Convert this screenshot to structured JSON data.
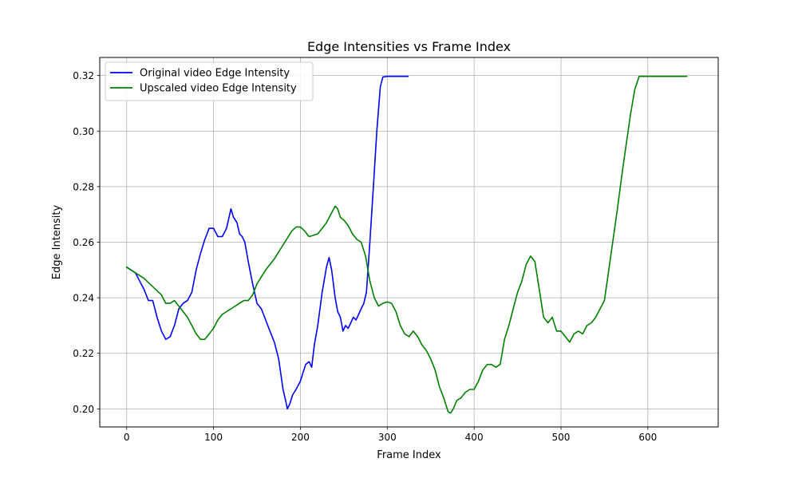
{
  "chart_data": {
    "type": "line",
    "title": "Edge Intensities vs Frame Index",
    "xlabel": "Frame Index",
    "ylabel": "Edge Intensity",
    "xlim": [
      -31,
      681
    ],
    "ylim": [
      0.1935,
      0.3265
    ],
    "xticks": [
      0,
      100,
      200,
      300,
      400,
      500,
      600
    ],
    "yticks": [
      0.2,
      0.22,
      0.24,
      0.26,
      0.28,
      0.3,
      0.32
    ],
    "grid": true,
    "legend_position": "top-left",
    "series": [
      {
        "name": "Original video Edge Intensity",
        "color": "#0000ff",
        "points": [
          [
            0,
            0.251
          ],
          [
            5,
            0.25
          ],
          [
            10,
            0.249
          ],
          [
            15,
            0.246
          ],
          [
            20,
            0.243
          ],
          [
            25,
            0.239
          ],
          [
            30,
            0.239
          ],
          [
            35,
            0.233
          ],
          [
            40,
            0.228
          ],
          [
            45,
            0.225
          ],
          [
            50,
            0.226
          ],
          [
            55,
            0.23
          ],
          [
            60,
            0.236
          ],
          [
            65,
            0.238
          ],
          [
            70,
            0.239
          ],
          [
            75,
            0.242
          ],
          [
            80,
            0.25
          ],
          [
            85,
            0.256
          ],
          [
            90,
            0.261
          ],
          [
            95,
            0.265
          ],
          [
            100,
            0.265
          ],
          [
            105,
            0.262
          ],
          [
            110,
            0.262
          ],
          [
            115,
            0.265
          ],
          [
            120,
            0.272
          ],
          [
            123,
            0.269
          ],
          [
            127,
            0.267
          ],
          [
            130,
            0.263
          ],
          [
            133,
            0.262
          ],
          [
            136,
            0.26
          ],
          [
            140,
            0.253
          ],
          [
            145,
            0.245
          ],
          [
            150,
            0.238
          ],
          [
            155,
            0.236
          ],
          [
            160,
            0.232
          ],
          [
            165,
            0.228
          ],
          [
            170,
            0.224
          ],
          [
            175,
            0.218
          ],
          [
            180,
            0.207
          ],
          [
            183,
            0.203
          ],
          [
            185,
            0.2
          ],
          [
            188,
            0.202
          ],
          [
            191,
            0.205
          ],
          [
            195,
            0.207
          ],
          [
            200,
            0.21
          ],
          [
            203,
            0.213
          ],
          [
            206,
            0.216
          ],
          [
            210,
            0.217
          ],
          [
            213,
            0.215
          ],
          [
            216,
            0.223
          ],
          [
            220,
            0.23
          ],
          [
            225,
            0.242
          ],
          [
            230,
            0.251
          ],
          [
            233,
            0.2545
          ],
          [
            236,
            0.25
          ],
          [
            240,
            0.24
          ],
          [
            243,
            0.235
          ],
          [
            246,
            0.233
          ],
          [
            249,
            0.228
          ],
          [
            252,
            0.23
          ],
          [
            255,
            0.229
          ],
          [
            258,
            0.231
          ],
          [
            261,
            0.233
          ],
          [
            264,
            0.232
          ],
          [
            267,
            0.234
          ],
          [
            270,
            0.236
          ],
          [
            273,
            0.238
          ],
          [
            276,
            0.242
          ],
          [
            280,
            0.26
          ],
          [
            284,
            0.28
          ],
          [
            288,
            0.3
          ],
          [
            292,
            0.316
          ],
          [
            295,
            0.3195
          ],
          [
            300,
            0.3197
          ],
          [
            310,
            0.3197
          ],
          [
            320,
            0.3197
          ],
          [
            324,
            0.3197
          ]
        ]
      },
      {
        "name": "Upscaled video Edge Intensity",
        "color": "#008000",
        "points": [
          [
            0,
            0.251
          ],
          [
            10,
            0.249
          ],
          [
            20,
            0.247
          ],
          [
            30,
            0.244
          ],
          [
            40,
            0.241
          ],
          [
            45,
            0.238
          ],
          [
            50,
            0.238
          ],
          [
            55,
            0.239
          ],
          [
            60,
            0.237
          ],
          [
            65,
            0.235
          ],
          [
            70,
            0.233
          ],
          [
            75,
            0.23
          ],
          [
            80,
            0.227
          ],
          [
            85,
            0.225
          ],
          [
            90,
            0.225
          ],
          [
            95,
            0.227
          ],
          [
            100,
            0.229
          ],
          [
            105,
            0.232
          ],
          [
            110,
            0.234
          ],
          [
            115,
            0.235
          ],
          [
            120,
            0.236
          ],
          [
            130,
            0.238
          ],
          [
            135,
            0.239
          ],
          [
            140,
            0.239
          ],
          [
            145,
            0.241
          ],
          [
            150,
            0.245
          ],
          [
            160,
            0.25
          ],
          [
            170,
            0.254
          ],
          [
            180,
            0.259
          ],
          [
            190,
            0.264
          ],
          [
            195,
            0.2655
          ],
          [
            200,
            0.2655
          ],
          [
            205,
            0.264
          ],
          [
            210,
            0.262
          ],
          [
            220,
            0.263
          ],
          [
            225,
            0.265
          ],
          [
            230,
            0.267
          ],
          [
            235,
            0.27
          ],
          [
            240,
            0.273
          ],
          [
            243,
            0.272
          ],
          [
            246,
            0.269
          ],
          [
            250,
            0.268
          ],
          [
            255,
            0.266
          ],
          [
            260,
            0.263
          ],
          [
            265,
            0.261
          ],
          [
            270,
            0.26
          ],
          [
            275,
            0.255
          ],
          [
            280,
            0.246
          ],
          [
            285,
            0.24
          ],
          [
            290,
            0.237
          ],
          [
            295,
            0.238
          ],
          [
            300,
            0.2385
          ],
          [
            305,
            0.238
          ],
          [
            310,
            0.235
          ],
          [
            315,
            0.23
          ],
          [
            320,
            0.227
          ],
          [
            325,
            0.226
          ],
          [
            330,
            0.228
          ],
          [
            335,
            0.226
          ],
          [
            340,
            0.223
          ],
          [
            345,
            0.221
          ],
          [
            350,
            0.218
          ],
          [
            355,
            0.214
          ],
          [
            360,
            0.208
          ],
          [
            365,
            0.204
          ],
          [
            370,
            0.199
          ],
          [
            373,
            0.1985
          ],
          [
            376,
            0.2
          ],
          [
            380,
            0.203
          ],
          [
            385,
            0.204
          ],
          [
            390,
            0.206
          ],
          [
            395,
            0.207
          ],
          [
            400,
            0.207
          ],
          [
            405,
            0.21
          ],
          [
            410,
            0.214
          ],
          [
            415,
            0.216
          ],
          [
            420,
            0.216
          ],
          [
            425,
            0.215
          ],
          [
            430,
            0.216
          ],
          [
            435,
            0.225
          ],
          [
            440,
            0.23
          ],
          [
            445,
            0.236
          ],
          [
            450,
            0.242
          ],
          [
            455,
            0.246
          ],
          [
            460,
            0.252
          ],
          [
            465,
            0.255
          ],
          [
            470,
            0.253
          ],
          [
            475,
            0.243
          ],
          [
            480,
            0.233
          ],
          [
            485,
            0.231
          ],
          [
            490,
            0.233
          ],
          [
            495,
            0.228
          ],
          [
            500,
            0.228
          ],
          [
            505,
            0.226
          ],
          [
            510,
            0.224
          ],
          [
            515,
            0.227
          ],
          [
            520,
            0.228
          ],
          [
            525,
            0.227
          ],
          [
            530,
            0.23
          ],
          [
            535,
            0.231
          ],
          [
            540,
            0.233
          ],
          [
            545,
            0.236
          ],
          [
            550,
            0.239
          ],
          [
            555,
            0.25
          ],
          [
            560,
            0.261
          ],
          [
            565,
            0.272
          ],
          [
            570,
            0.284
          ],
          [
            575,
            0.295
          ],
          [
            580,
            0.306
          ],
          [
            585,
            0.315
          ],
          [
            590,
            0.3197
          ],
          [
            600,
            0.3197
          ],
          [
            620,
            0.3197
          ],
          [
            645,
            0.3197
          ]
        ]
      }
    ]
  }
}
